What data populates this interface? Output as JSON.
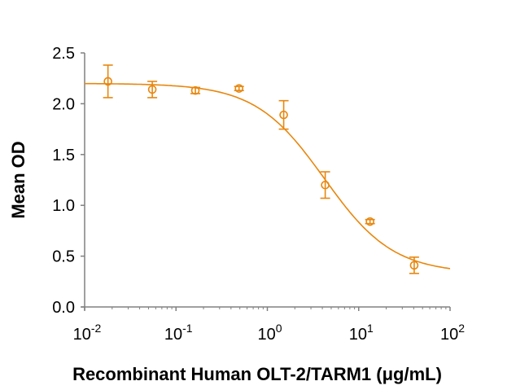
{
  "chart_data": {
    "type": "scatter",
    "title": "",
    "xlabel": "Recombinant Human OLT-2/TARM1 (μg/mL)",
    "ylabel": "Mean OD",
    "xscale": "log",
    "xlim": [
      0.01,
      100
    ],
    "ylim": [
      0,
      2.5
    ],
    "grid": false,
    "legend": "none",
    "color": "#E8870E",
    "axis_color": "#808080",
    "x_ticks": [
      {
        "base": "10",
        "exp": "-2",
        "value": 0.01
      },
      {
        "base": "10",
        "exp": "-1",
        "value": 0.1
      },
      {
        "base": "10",
        "exp": "0",
        "value": 1
      },
      {
        "base": "10",
        "exp": "1",
        "value": 10
      },
      {
        "base": "10",
        "exp": "2",
        "value": 100
      }
    ],
    "y_ticks": [
      {
        "label": "0.0",
        "value": 0
      },
      {
        "label": "0.5",
        "value": 0.5
      },
      {
        "label": "1.0",
        "value": 1.0
      },
      {
        "label": "1.5",
        "value": 1.5
      },
      {
        "label": "2.0",
        "value": 2.0
      },
      {
        "label": "2.5",
        "value": 2.5
      }
    ],
    "series": [
      {
        "name": "Mean OD",
        "x": [
          0.018,
          0.055,
          0.163,
          0.49,
          1.51,
          4.3,
          13.3,
          40.5
        ],
        "y": [
          2.22,
          2.14,
          2.13,
          2.15,
          1.89,
          1.2,
          0.84,
          0.41
        ],
        "error": [
          0.16,
          0.08,
          0.03,
          0.02,
          0.14,
          0.13,
          0.02,
          0.08
        ]
      }
    ],
    "fit_curve": {
      "model": "4PL",
      "top": 2.2,
      "bottom": 0.33,
      "ec50": 4.2,
      "hill": 1.15
    }
  }
}
